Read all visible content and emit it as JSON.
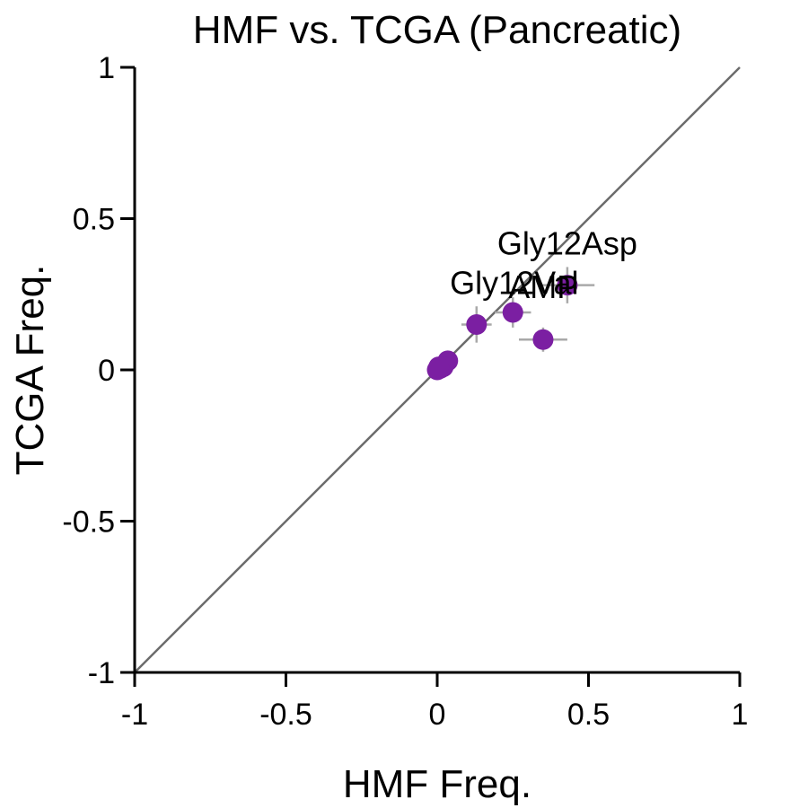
{
  "chart_data": {
    "type": "scatter",
    "title": "HMF vs. TCGA (Pancreatic)",
    "xlabel": "HMF Freq.",
    "ylabel": "TCGA Freq.",
    "xlim": [
      -1,
      1
    ],
    "ylim": [
      -1,
      1
    ],
    "x_ticks": [
      -1,
      -0.5,
      0,
      0.5,
      1
    ],
    "x_tick_labels": [
      "-1",
      "-0.5",
      "0",
      "0.5",
      "1"
    ],
    "y_ticks": [
      -1,
      -0.5,
      0,
      0.5,
      1
    ],
    "y_tick_labels": [
      "-1",
      "-0.5",
      "0",
      "0.5",
      "1"
    ],
    "grid": false,
    "diagonal": true,
    "point_color": "#7B1FA2",
    "error_color": "#A9A9A9",
    "diagonal_color": "#6B6B6B",
    "points": [
      {
        "x": 0.43,
        "y": 0.28,
        "xerr": 0.09,
        "yerr": 0.06,
        "label": "Gly12Asp"
      },
      {
        "x": 0.25,
        "y": 0.19,
        "xerr": 0.06,
        "yerr": 0.05,
        "label": "AMP"
      },
      {
        "x": 0.13,
        "y": 0.15,
        "xerr": 0.05,
        "yerr": 0.06,
        "label": "Gly12Val"
      },
      {
        "x": 0.35,
        "y": 0.1,
        "xerr": 0.08,
        "yerr": 0.04,
        "label": ""
      },
      {
        "x": 0.035,
        "y": 0.03,
        "xerr": 0.02,
        "yerr": 0.02,
        "label": ""
      },
      {
        "x": 0.02,
        "y": 0.01,
        "xerr": 0.01,
        "yerr": 0.01,
        "label": ""
      },
      {
        "x": 0.01,
        "y": 0.005,
        "xerr": 0.0,
        "yerr": 0.0,
        "label": ""
      },
      {
        "x": 0.0,
        "y": 0.0,
        "xerr": 0.0,
        "yerr": 0.0,
        "label": ""
      },
      {
        "x": 0.005,
        "y": 0.01,
        "xerr": 0.0,
        "yerr": 0.0,
        "label": ""
      }
    ]
  }
}
